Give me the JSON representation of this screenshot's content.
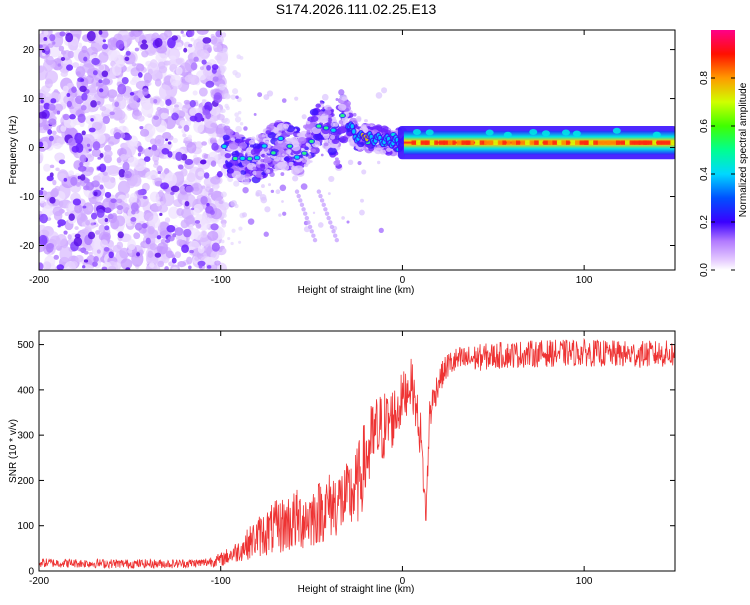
{
  "title": "S174.2026.111.02.25.E13",
  "chart_data": [
    {
      "type": "heatmap",
      "title": "S174.2026.111.02.25.E13",
      "xlabel": "Height of straight line (km)",
      "ylabel": "Frequency (Hz)",
      "xlim": [
        -200,
        150
      ],
      "ylim": [
        -25,
        24
      ],
      "xticks": [
        "-200",
        "-100",
        "0",
        "100"
      ],
      "yticks": [
        "-20",
        "-10",
        "0",
        "10",
        "20"
      ],
      "colorbar": {
        "label": "Normalized spectral amplitude",
        "range": [
          0,
          1
        ],
        "ticks": [
          "0.0",
          "0.2",
          "0.4",
          "0.6",
          "0.8"
        ],
        "colormap": "rainbow: white-lilac at 0, violet, blue, cyan, green, yellow, orange, red, magenta at 1"
      },
      "regions": [
        {
          "name": "noise",
          "x_range": [
            -200,
            -100
          ],
          "freq_range": [
            -25,
            24
          ],
          "amplitude": [
            0.05,
            0.15
          ]
        },
        {
          "name": "transition",
          "x_range": [
            -100,
            0
          ],
          "freq_range": [
            -6,
            10
          ],
          "amplitude": [
            0.1,
            0.35
          ]
        },
        {
          "name": "tone",
          "x_range": [
            0,
            150
          ],
          "freq_center": 1,
          "amplitude": [
            0.6,
            0.95
          ]
        }
      ]
    },
    {
      "type": "line",
      "xlabel": "Height of straight line (km)",
      "ylabel": "SNR (10 * v/v)",
      "xlim": [
        -200,
        150
      ],
      "ylim": [
        0,
        530
      ],
      "xticks": [
        "-200",
        "-100",
        "0",
        "100"
      ],
      "yticks": [
        "0",
        "100",
        "200",
        "300",
        "400",
        "500"
      ],
      "color": "#ee3333",
      "series": [
        {
          "name": "SNR",
          "x": [
            -200,
            -175,
            -150,
            -125,
            -110,
            -100,
            -90,
            -80,
            -70,
            -60,
            -50,
            -40,
            -30,
            -25,
            -20,
            -15,
            -10,
            -5,
            0,
            5,
            10,
            13,
            15,
            20,
            25,
            30,
            40,
            50,
            60,
            75,
            100,
            125,
            150
          ],
          "values": [
            18,
            17,
            16,
            16,
            18,
            25,
            45,
            75,
            95,
            110,
            120,
            145,
            160,
            185,
            250,
            300,
            320,
            340,
            380,
            420,
            300,
            120,
            350,
            420,
            455,
            465,
            470,
            475,
            478,
            480,
            482,
            478,
            480
          ],
          "noise_amplitude": [
            10,
            10,
            10,
            10,
            10,
            15,
            25,
            45,
            60,
            70,
            70,
            75,
            80,
            90,
            95,
            90,
            80,
            70,
            60,
            50,
            55,
            30,
            45,
            30,
            30,
            30,
            30,
            30,
            30,
            30,
            30,
            30,
            30
          ]
        }
      ]
    }
  ]
}
